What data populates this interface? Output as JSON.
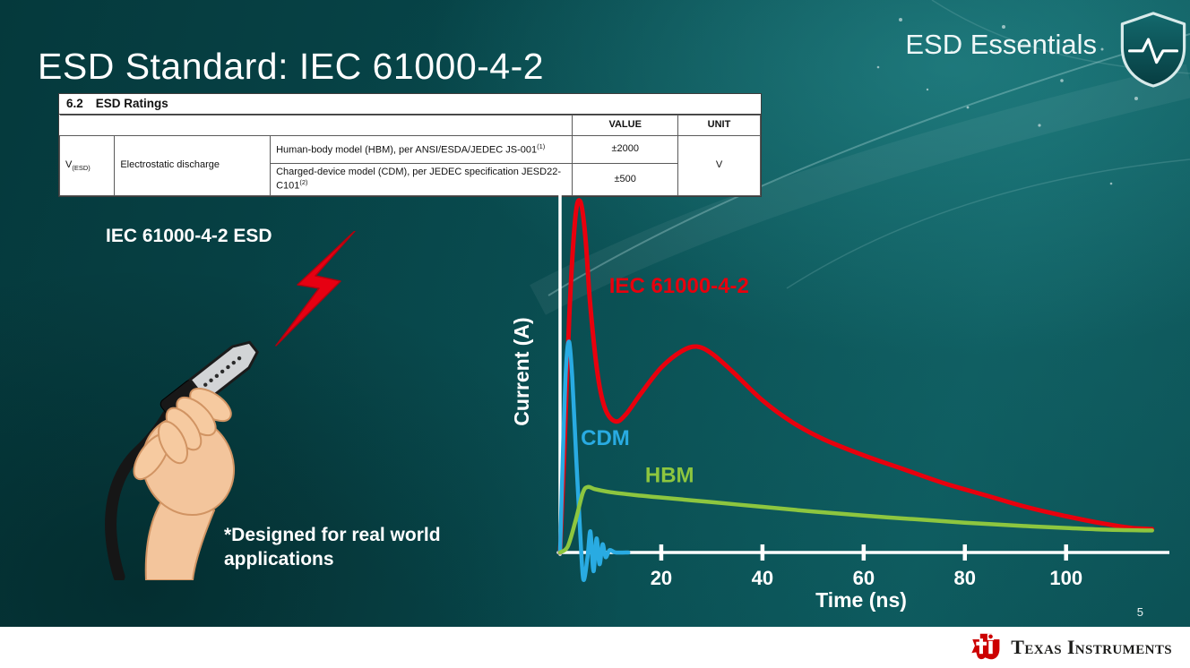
{
  "slide": {
    "title": "ESD Standard: IEC 61000-4-2",
    "brand": "ESD Essentials",
    "page_number": "5",
    "footer_logo": "Texas Instruments"
  },
  "colors": {
    "background_teal": "#0a4d51",
    "iec_red": "#e8000d",
    "cdm_blue": "#29abe2",
    "hbm_green": "#8dc63f",
    "ti_red": "#cc0000",
    "footer_white": "#ffffff"
  },
  "icons": {
    "brand_shield": "shield-with-pulse",
    "esd_strike": "lightning-bolt",
    "footer_logo": "ti-texas-bug"
  },
  "ratings_table": {
    "section": "6.2",
    "section_title": "ESD Ratings",
    "col_headers": [
      "VALUE",
      "UNIT"
    ],
    "row_symbol_base": "V",
    "row_symbol_sub": "(ESD)",
    "row_label": "Electrostatic discharge",
    "rows": [
      {
        "description": "Human-body model (HBM), per ANSI/ESDA/JEDEC JS-001",
        "description_sup": "(1)",
        "value": "±2000"
      },
      {
        "description": "Charged-device model (CDM), per JEDEC specification JESD22-C101",
        "description_sup": "(2)",
        "value": "±500"
      }
    ],
    "unit": "V"
  },
  "illustration": {
    "label": "IEC 61000-4-2 ESD",
    "caption": "*Designed for real world\napplications"
  },
  "chart_data": {
    "type": "line",
    "title": "",
    "xlabel": "Time (ns)",
    "ylabel": "Current (A)",
    "x_ticks": [
      20,
      40,
      60,
      80,
      100
    ],
    "xlim": [
      0,
      119
    ],
    "ylim": [
      -3,
      31
    ],
    "grid": false,
    "legend_position": "inline-annotations",
    "series": [
      {
        "name": "IEC 61000-4-2",
        "color": "#e8000d",
        "points": [
          [
            0,
            0
          ],
          [
            0.8,
            8
          ],
          [
            1.8,
            20
          ],
          [
            3,
            28.5
          ],
          [
            4,
            30
          ],
          [
            5,
            27
          ],
          [
            6,
            21
          ],
          [
            7.5,
            15
          ],
          [
            9,
            12.2
          ],
          [
            11,
            11.2
          ],
          [
            13,
            11.8
          ],
          [
            16,
            13.6
          ],
          [
            20,
            15.8
          ],
          [
            24,
            17.2
          ],
          [
            27,
            17.6
          ],
          [
            30,
            17
          ],
          [
            34,
            15.5
          ],
          [
            40,
            13
          ],
          [
            46,
            11.1
          ],
          [
            52,
            9.7
          ],
          [
            60,
            8.3
          ],
          [
            68,
            7.1
          ],
          [
            76,
            5.9
          ],
          [
            84,
            4.9
          ],
          [
            92,
            3.9
          ],
          [
            100,
            3.1
          ],
          [
            107,
            2.5
          ],
          [
            113,
            2.1
          ],
          [
            117,
            2
          ]
        ]
      },
      {
        "name": "CDM",
        "color": "#29abe2",
        "points": [
          [
            0,
            0
          ],
          [
            0.6,
            9
          ],
          [
            1.2,
            16
          ],
          [
            1.8,
            18
          ],
          [
            2.4,
            15
          ],
          [
            3.2,
            8
          ],
          [
            4,
            1.5
          ],
          [
            4.6,
            -2.3
          ],
          [
            5.4,
            -0.5
          ],
          [
            6,
            1.8
          ],
          [
            6.6,
            -1.6
          ],
          [
            7.2,
            1.2
          ],
          [
            7.8,
            -1
          ],
          [
            8.4,
            0.7
          ],
          [
            9,
            -0.4
          ],
          [
            9.8,
            0.2
          ],
          [
            11,
            0
          ],
          [
            13.5,
            0
          ]
        ]
      },
      {
        "name": "HBM",
        "color": "#8dc63f",
        "points": [
          [
            0,
            0
          ],
          [
            1.5,
            0.5
          ],
          [
            3,
            2.6
          ],
          [
            4.5,
            5.1
          ],
          [
            5.5,
            5.6
          ],
          [
            7,
            5.4
          ],
          [
            10,
            5.15
          ],
          [
            15,
            4.9
          ],
          [
            20,
            4.7
          ],
          [
            30,
            4.3
          ],
          [
            40,
            3.9
          ],
          [
            50,
            3.5
          ],
          [
            60,
            3.15
          ],
          [
            70,
            2.85
          ],
          [
            80,
            2.55
          ],
          [
            90,
            2.3
          ],
          [
            100,
            2.1
          ],
          [
            108,
            1.95
          ],
          [
            117,
            1.88
          ]
        ]
      }
    ],
    "annotations": [
      {
        "text": "IEC 61000-4-2",
        "color": "#e8000d",
        "t": 9.7,
        "i": 22.2
      },
      {
        "text": "CDM",
        "color": "#29abe2",
        "t": 4.1,
        "i": 9.2
      },
      {
        "text": "HBM",
        "color": "#8dc63f",
        "t": 16.8,
        "i": 6
      }
    ]
  }
}
